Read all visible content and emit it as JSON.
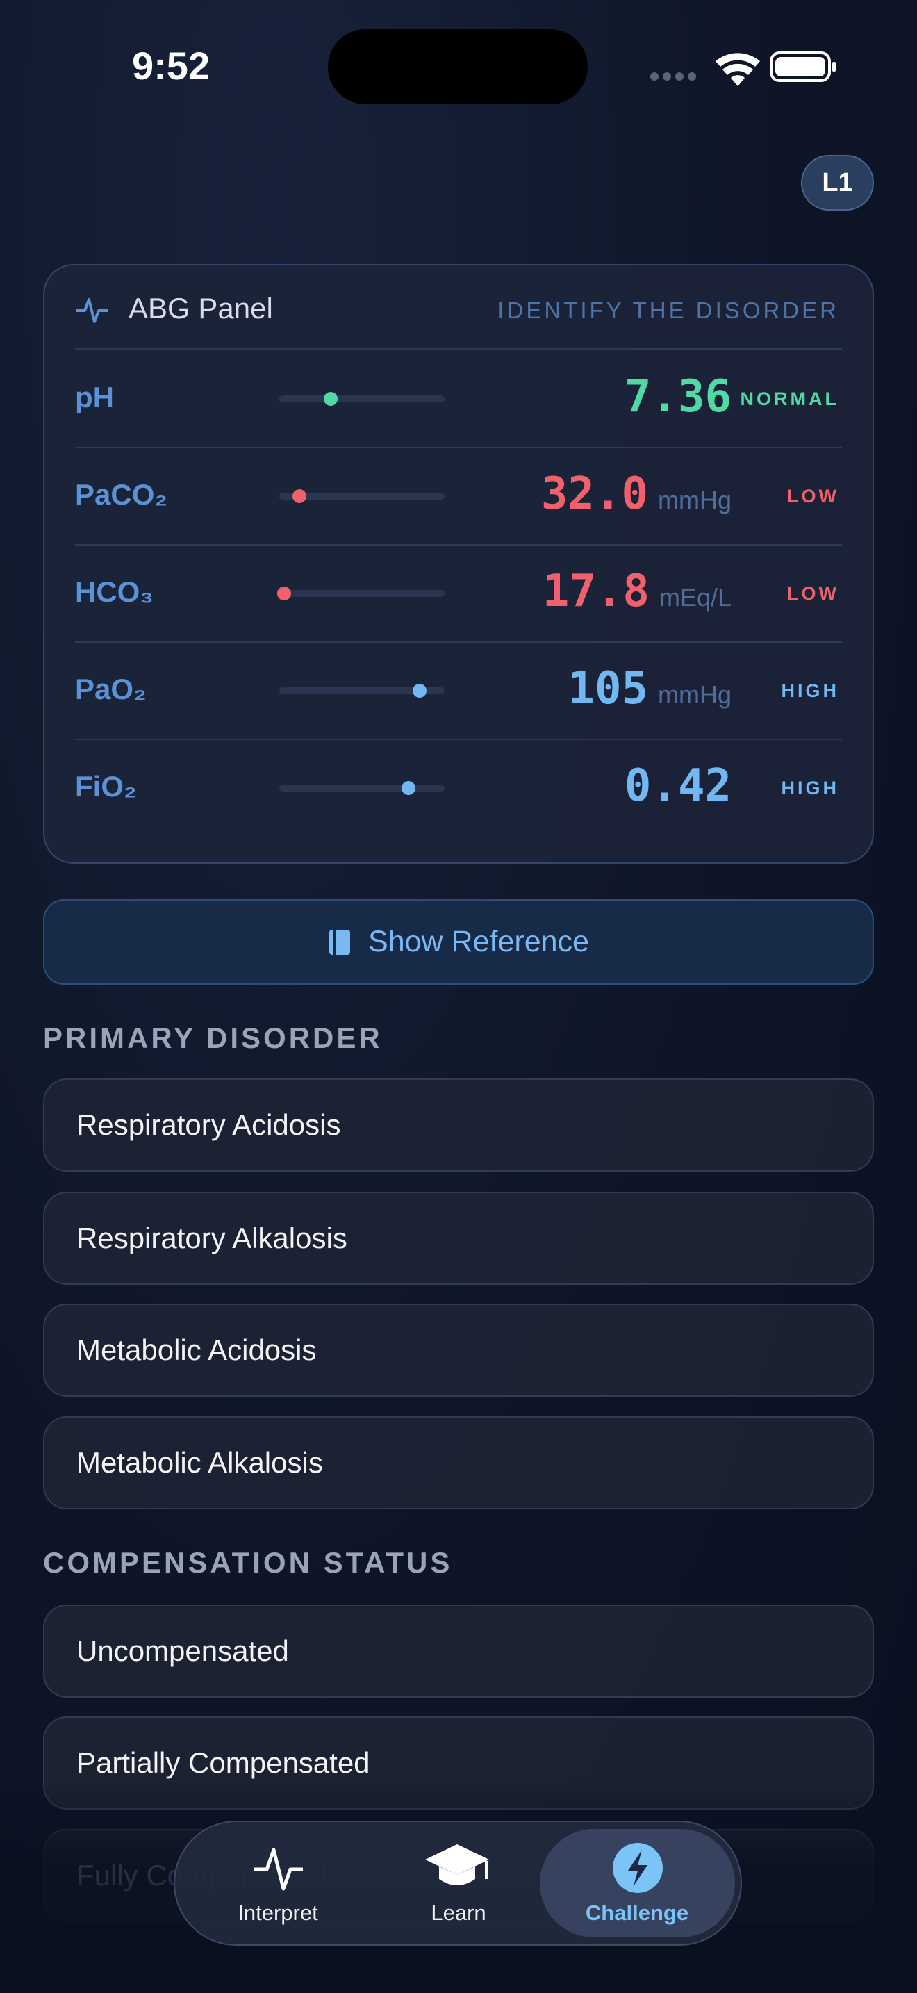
{
  "status_bar": {
    "time": "9:52"
  },
  "level_badge": "L1",
  "panel": {
    "title": "ABG Panel",
    "prompt": "IDENTIFY THE DISORDER",
    "rows": [
      {
        "label": "pH",
        "value": "7.36",
        "status": "NORMAL",
        "color": "#4fd9a3"
      },
      {
        "label": "PaCO₂",
        "value": "32.0",
        "unit": "mmHg",
        "status": "LOW",
        "color": "#f2606b"
      },
      {
        "label": "HCO₃",
        "value": "17.8",
        "unit": "mEq/L",
        "status": "LOW",
        "color": "#f2606b"
      },
      {
        "label": "PaO₂",
        "value": "105",
        "unit": "mmHg",
        "status": "HIGH",
        "color": "#72b6f2"
      },
      {
        "label": "FiO₂",
        "value": "0.42",
        "status": "HIGH",
        "color": "#72b6f2"
      }
    ]
  },
  "reference_button": "Show Reference",
  "sections": [
    {
      "title": "PRIMARY DISORDER",
      "options": [
        "Respiratory Acidosis",
        "Respiratory Alkalosis",
        "Metabolic Acidosis",
        "Metabolic Alkalosis"
      ]
    },
    {
      "title": "COMPENSATION STATUS",
      "options": [
        "Uncompensated",
        "Partially Compensated",
        "Fully Compensated"
      ]
    }
  ],
  "tab_bar": {
    "tabs": [
      "Interpret",
      "Learn",
      "Challenge"
    ],
    "selected": 2
  }
}
